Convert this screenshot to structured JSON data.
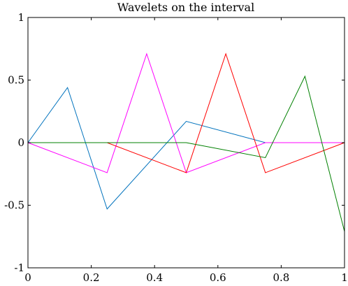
{
  "chart_data": {
    "type": "line",
    "title": "Wavelets on the interval",
    "xlabel": "",
    "ylabel": "",
    "xlim": [
      0,
      1
    ],
    "ylim": [
      -1,
      1
    ],
    "xticks": [
      0,
      0.2,
      0.4,
      0.6,
      0.8,
      1
    ],
    "xtick_labels": [
      "0",
      "0.2",
      "0.4",
      "0.6",
      "0.8",
      "1"
    ],
    "yticks": [
      -1,
      -0.5,
      0,
      0.5,
      1
    ],
    "ytick_labels": [
      "-1",
      "-0.5",
      "0",
      "0.5",
      "1"
    ],
    "grid": false,
    "legend": "none",
    "series": [
      {
        "color": "#0072BD",
        "x": [
          0,
          0.125,
          0.25,
          0.5,
          0.75,
          1
        ],
        "y": [
          0,
          0.44,
          -0.53,
          0.17,
          0,
          0
        ]
      },
      {
        "color": "#FF00FF",
        "x": [
          0,
          0.25,
          0.375,
          0.5,
          0.75,
          1
        ],
        "y": [
          0,
          -0.24,
          0.71,
          -0.24,
          0,
          0
        ]
      },
      {
        "color": "#FF0000",
        "x": [
          0,
          0.25,
          0.5,
          0.625,
          0.75,
          1
        ],
        "y": [
          0,
          0,
          -0.24,
          0.71,
          -0.24,
          0
        ]
      },
      {
        "color": "#008000",
        "x": [
          0,
          0.5,
          0.75,
          0.875,
          1
        ],
        "y": [
          0,
          0,
          -0.12,
          0.53,
          -0.71
        ]
      }
    ]
  }
}
